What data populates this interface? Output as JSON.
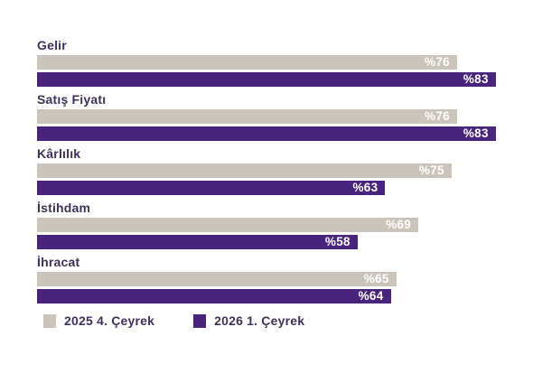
{
  "page": {
    "background": "#FFFFFF"
  },
  "chart_data": {
    "type": "bar",
    "orientation": "horizontal",
    "title": "",
    "categories": [
      "Gelir",
      "Satış Fiyatı",
      "Kârlılık",
      "İstihdam",
      "İhracat"
    ],
    "series": [
      {
        "name": "2025 4. Çeyrek",
        "color": "#CBC4BB",
        "values": [
          76,
          76,
          75,
          69,
          65
        ]
      },
      {
        "name": "2026 1. Çeyrek",
        "color": "#48247D",
        "values": [
          83,
          83,
          63,
          58,
          64
        ]
      }
    ],
    "value_prefix": "%",
    "value_label_color": "#FFFFFF",
    "category_label_color": "#3E3158",
    "xlim": [
      0,
      85
    ],
    "grid": false,
    "legend_position": "bottom-left",
    "value_labels_inside_bar": true
  }
}
